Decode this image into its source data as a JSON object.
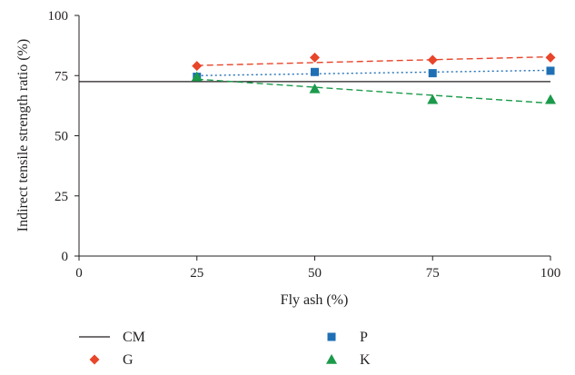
{
  "chart_data": {
    "type": "scatter",
    "xlabel": "Fly ash (%)",
    "ylabel": "Indirect tensile strength ratio (%)",
    "xlim": [
      0,
      100
    ],
    "ylim": [
      0,
      100
    ],
    "x_ticks": [
      "0",
      "25",
      "50",
      "75",
      "100"
    ],
    "y_ticks": [
      "0",
      "25",
      "50",
      "75",
      "100"
    ],
    "grid": false,
    "legend_position": "bottom",
    "series": [
      {
        "name": "CM",
        "kind": "reference-line",
        "y": 72.5,
        "color": "#231f20"
      },
      {
        "name": "G",
        "marker": "diamond",
        "color": "#e8452a",
        "x": [
          25,
          50,
          75,
          100
        ],
        "y": [
          79,
          82.5,
          81.5,
          82.5
        ],
        "trend": {
          "style": "dashed",
          "x": [
            25,
            100
          ],
          "y": [
            79.2,
            82.8
          ]
        }
      },
      {
        "name": "P",
        "marker": "square",
        "color": "#1f6fb5",
        "x": [
          25,
          50,
          75,
          100
        ],
        "y": [
          74.5,
          76.5,
          76,
          77
        ],
        "trend": {
          "style": "dotted",
          "x": [
            25,
            100
          ],
          "y": [
            75,
            77.2
          ]
        }
      },
      {
        "name": "K",
        "marker": "triangle",
        "color": "#1a9a4a",
        "x": [
          25,
          50,
          75,
          100
        ],
        "y": [
          74.5,
          69.5,
          65,
          65
        ],
        "trend": {
          "style": "dashed",
          "x": [
            25,
            100
          ],
          "y": [
            73.5,
            63.5
          ]
        }
      }
    ]
  }
}
